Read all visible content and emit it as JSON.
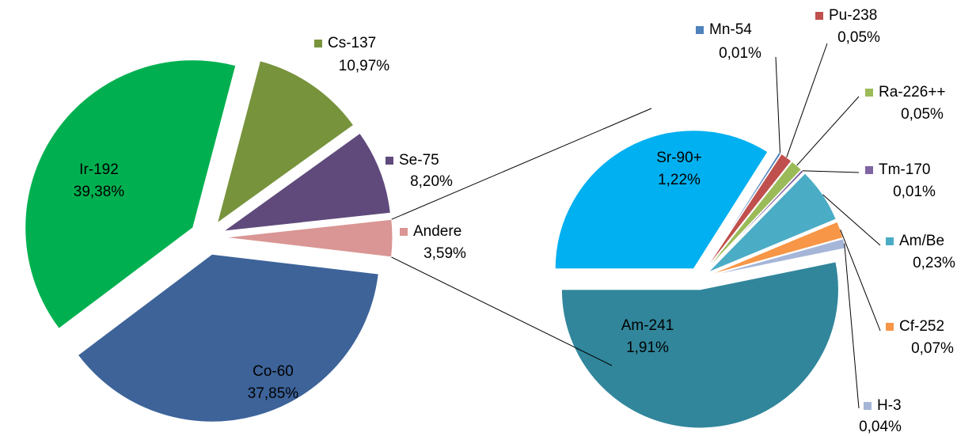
{
  "chart_data": [
    {
      "type": "pie",
      "labels": [
        "Ir-192",
        "Cs-137",
        "Se-75",
        "Andere",
        "Co-60"
      ],
      "values": [
        39.38,
        10.97,
        8.2,
        3.59,
        37.85
      ],
      "value_labels": [
        "39,38%",
        "10,97%",
        "8,20%",
        "3,59%",
        "37,85%"
      ],
      "colors": [
        "#00b050",
        "#77933c",
        "#604a7b",
        "#d99694",
        "#3d6399"
      ]
    },
    {
      "type": "pie",
      "labels": [
        "Sr-90+",
        "Mn-54",
        "Pu-238",
        "Ra-226++",
        "Tm-170",
        "Am/Be",
        "Cf-252",
        "H-3",
        "Am-241"
      ],
      "values": [
        1.22,
        0.01,
        0.05,
        0.05,
        0.01,
        0.23,
        0.07,
        0.04,
        1.91
      ],
      "value_labels": [
        "1,22%",
        "0,01%",
        "0,05%",
        "0,05%",
        "0,01%",
        "0,23%",
        "0,07%",
        "0,04%",
        "1,91%"
      ],
      "colors": [
        "#00b0f0",
        "#4f81bd",
        "#c0504d",
        "#9bbb59",
        "#8064a2",
        "#4bacc6",
        "#f79646",
        "#a5b6d8",
        "#31869b"
      ]
    }
  ]
}
